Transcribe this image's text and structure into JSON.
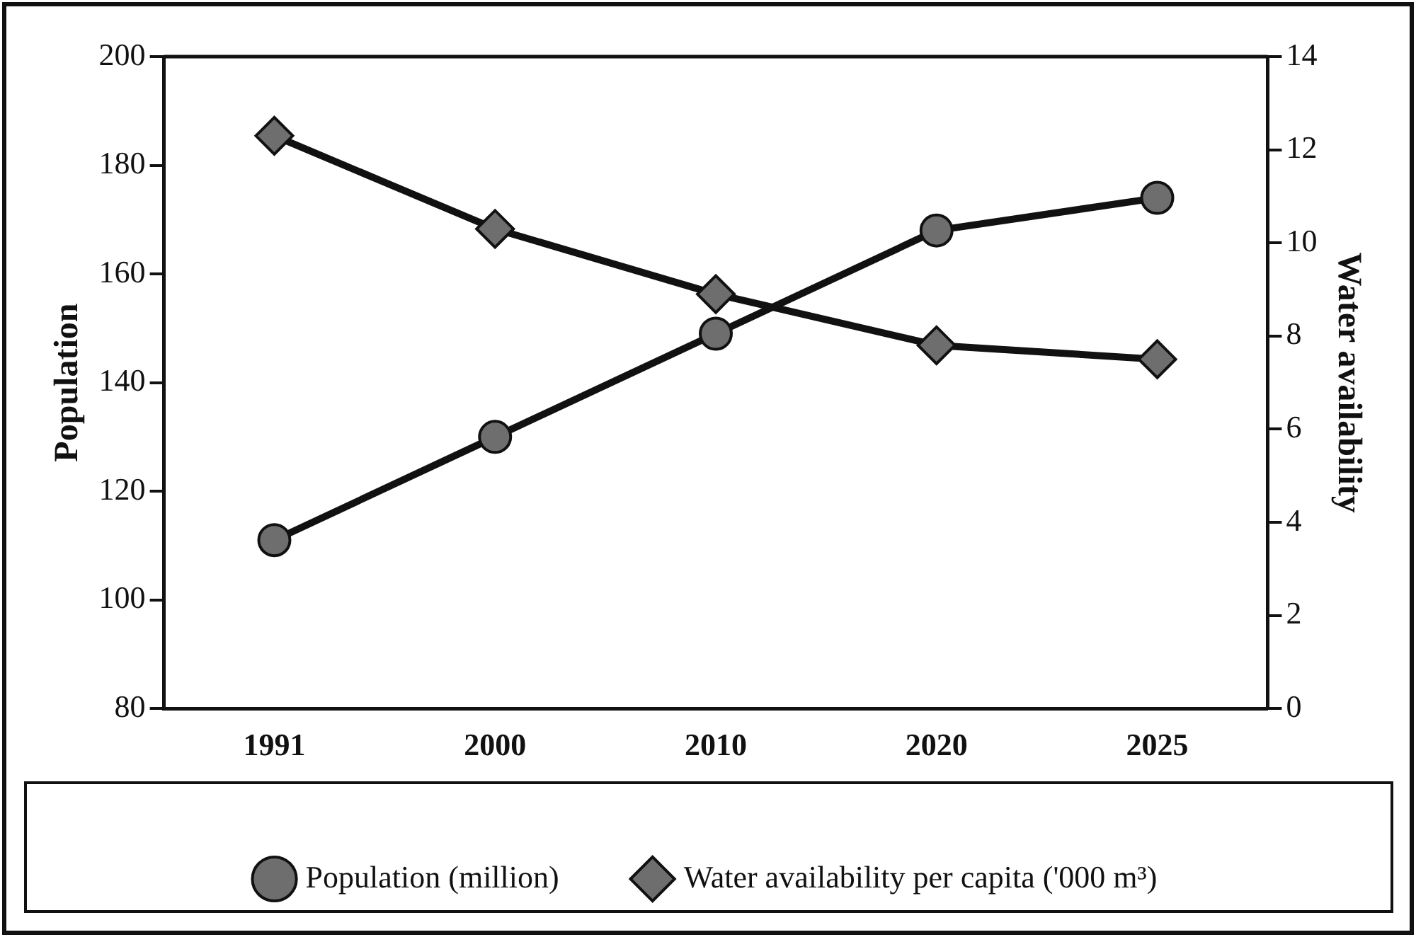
{
  "chart_data": {
    "type": "line",
    "categories": [
      "1991",
      "2000",
      "2010",
      "2020",
      "2025"
    ],
    "ylabel": "Population",
    "y2label": "Water availability",
    "ylim": [
      80,
      200
    ],
    "yticks": [
      80,
      100,
      120,
      140,
      160,
      180,
      200
    ],
    "y2lim": [
      0,
      14
    ],
    "y2ticks": [
      0,
      2,
      4,
      6,
      8,
      10,
      12,
      14
    ],
    "grid": false,
    "legend": "bottom",
    "series": [
      {
        "name": "Population (million)",
        "color": "#6e6e6e",
        "marker": "circle",
        "values": [
          111,
          130,
          149,
          168,
          174
        ]
      },
      {
        "name": "Water availability per capita ('000 m³)",
        "color": "#6e6e6e",
        "marker": "diamond",
        "axis": "y2",
        "values": [
          12.3,
          10.3,
          8.9,
          7.8,
          7.5
        ]
      }
    ]
  }
}
